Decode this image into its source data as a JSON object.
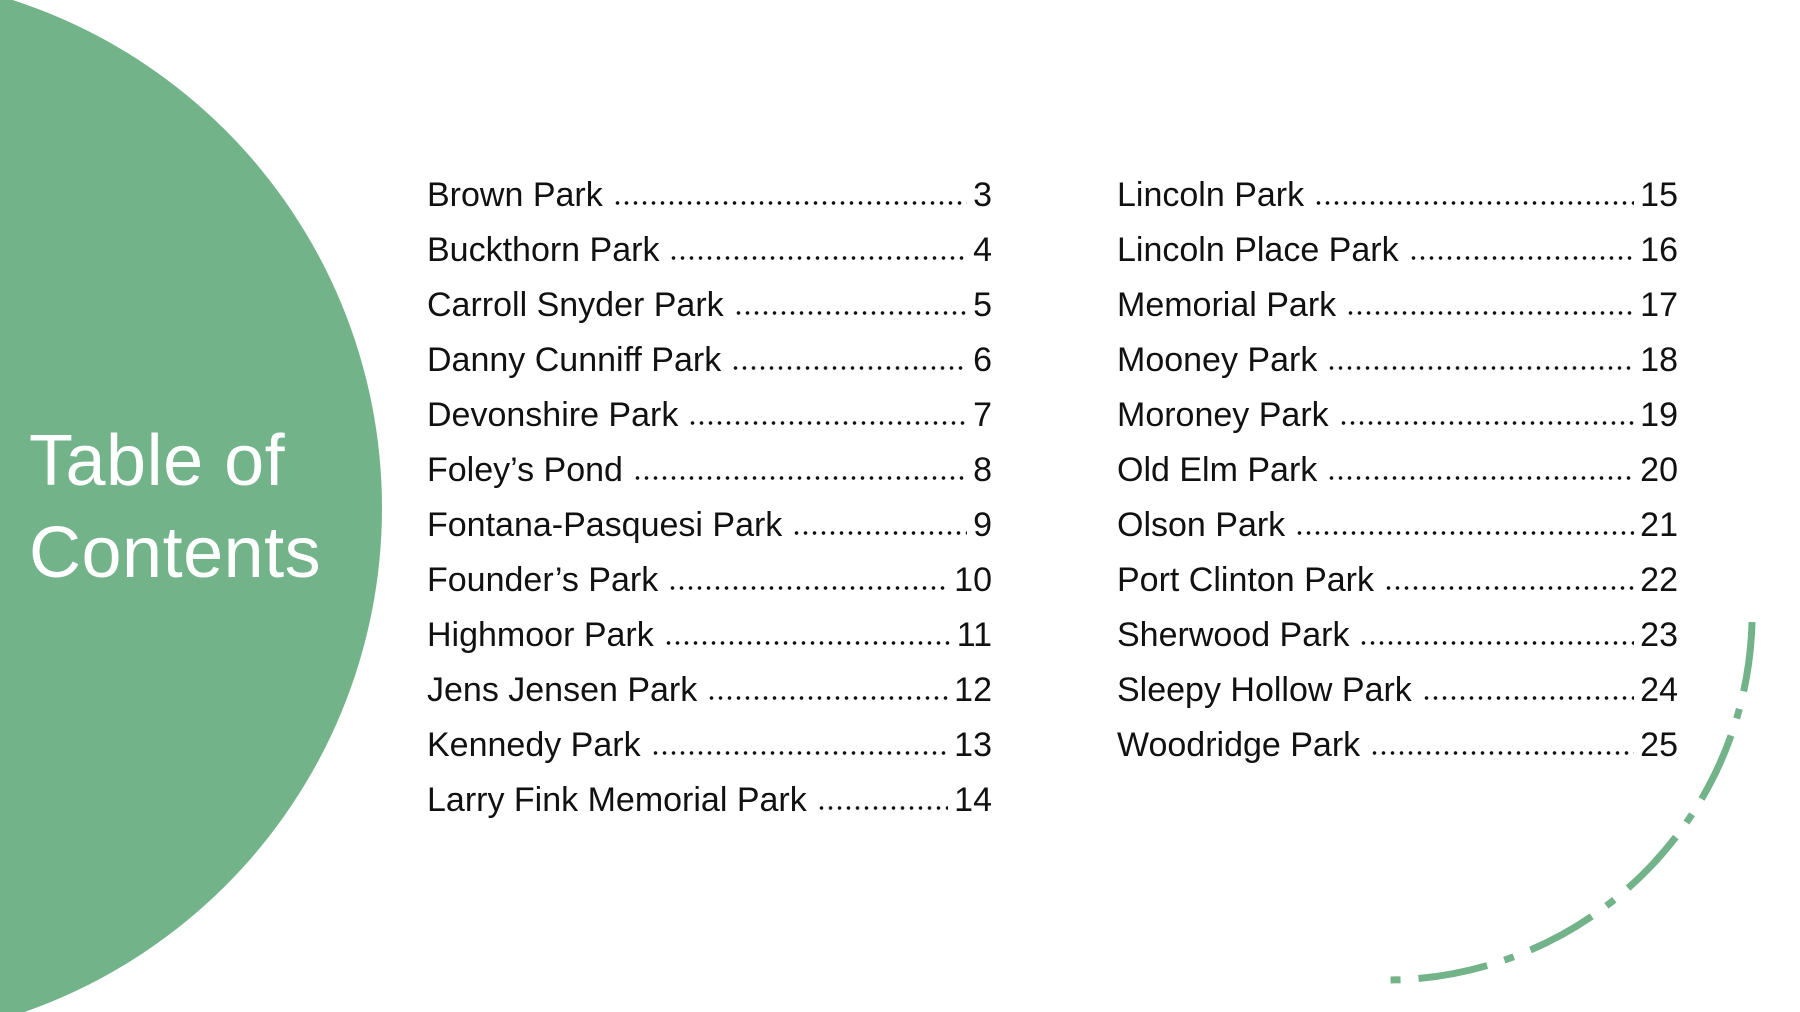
{
  "colors": {
    "accent": "#72b38a",
    "text": "#111111",
    "background": "#ffffff"
  },
  "title": {
    "line1": "Table of",
    "line2": "Contents"
  },
  "toc_left": [
    {
      "name": "Brown Park",
      "page": "3"
    },
    {
      "name": "Buckthorn Park",
      "page": "4"
    },
    {
      "name": "Carroll Snyder Park",
      "page": "5"
    },
    {
      "name": "Danny Cunniff Park",
      "page": "6"
    },
    {
      "name": "Devonshire Park",
      "page": "7"
    },
    {
      "name": "Foley’s Pond",
      "page": "8"
    },
    {
      "name": "Fontana-Pasquesi Park",
      "page": "9"
    },
    {
      "name": "Founder’s Park",
      "page": "10"
    },
    {
      "name": "Highmoor Park",
      "page": "11"
    },
    {
      "name": "Jens Jensen Park",
      "page": "12"
    },
    {
      "name": "Kennedy Park",
      "page": "13"
    },
    {
      "name": "Larry Fink Memorial Park",
      "page": "14"
    }
  ],
  "toc_right": [
    {
      "name": "Lincoln Park",
      "page": "15"
    },
    {
      "name": "Lincoln Place Park",
      "page": "16"
    },
    {
      "name": "Memorial Park",
      "page": "17"
    },
    {
      "name": "Mooney Park",
      "page": "18"
    },
    {
      "name": "Moroney Park",
      "page": "19"
    },
    {
      "name": "Old Elm Park",
      "page": "20"
    },
    {
      "name": "Olson Park",
      "page": "21"
    },
    {
      "name": "Port Clinton Park",
      "page": "22"
    },
    {
      "name": "Sherwood Park",
      "page": "23"
    },
    {
      "name": "Sleepy Hollow Park",
      "page": "24"
    },
    {
      "name": "Woodridge Park",
      "page": "25"
    }
  ]
}
